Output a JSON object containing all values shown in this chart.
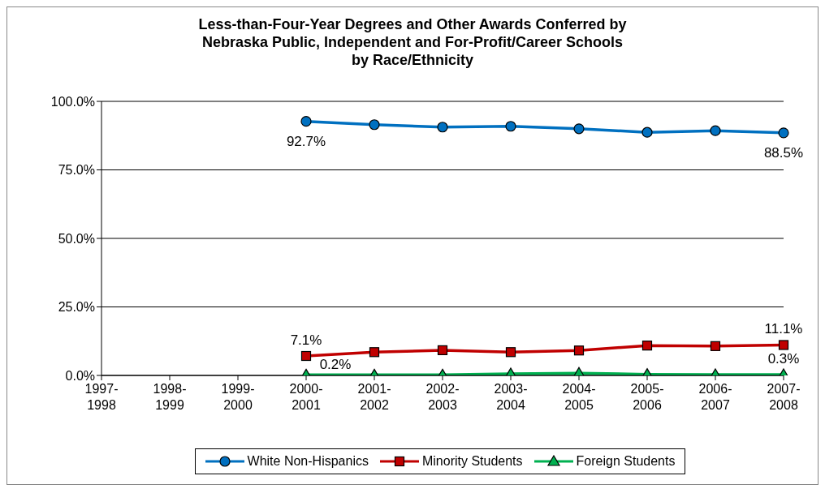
{
  "chart_data": {
    "type": "line",
    "title": "Less-than-Four-Year Degrees and Other Awards Conferred by\nNebraska Public, Independent and For-Profit/Career Schools\nby Race/Ethnicity",
    "categories": [
      "1997-\n1998",
      "1998-\n1999",
      "1999-\n2000",
      "2000-\n2001",
      "2001-\n2002",
      "2002-\n2003",
      "2003-\n2004",
      "2004-\n2005",
      "2005-\n2006",
      "2006-\n2007",
      "2007-\n2008"
    ],
    "series": [
      {
        "name": "White Non-Hispanics",
        "color": "#0070c0",
        "marker": "circle",
        "values": [
          null,
          null,
          null,
          92.7,
          91.5,
          90.6,
          90.9,
          90.0,
          88.7,
          89.3,
          88.5
        ],
        "value_labels": [
          null,
          null,
          null,
          "92.7%",
          null,
          null,
          null,
          null,
          null,
          null,
          "88.5%"
        ]
      },
      {
        "name": "Minority Students",
        "color": "#c00000",
        "marker": "square",
        "values": [
          null,
          null,
          null,
          7.1,
          8.5,
          9.2,
          8.5,
          9.1,
          10.9,
          10.7,
          11.1
        ],
        "value_labels": [
          null,
          null,
          null,
          "7.1%",
          null,
          null,
          null,
          null,
          null,
          null,
          "11.1%"
        ]
      },
      {
        "name": "Foreign Students",
        "color": "#00b050",
        "marker": "triangle",
        "values": [
          null,
          null,
          null,
          0.2,
          0.2,
          0.2,
          0.6,
          0.8,
          0.4,
          0.3,
          0.3
        ],
        "value_labels": [
          null,
          null,
          null,
          "0.2%",
          null,
          null,
          null,
          null,
          null,
          null,
          "0.3%"
        ]
      }
    ],
    "ylim": [
      0,
      100
    ],
    "yticks": [
      {
        "value": 0,
        "label": "0.0%"
      },
      {
        "value": 25,
        "label": "25.0%"
      },
      {
        "value": 50,
        "label": "50.0%"
      },
      {
        "value": 75,
        "label": "75.0%"
      },
      {
        "value": 100,
        "label": "100.0%"
      }
    ],
    "grid": "y",
    "legend": "bottom",
    "line_style": "solid"
  }
}
